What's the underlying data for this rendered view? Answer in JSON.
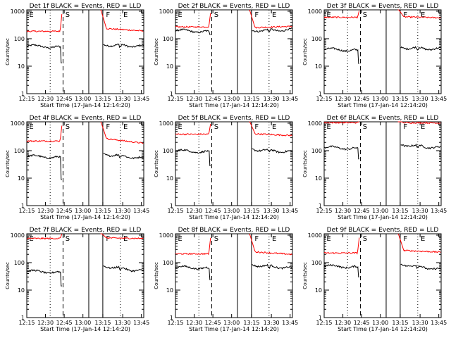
{
  "title_pattern": "Det {n}f BLACK = Events, RED = LLD",
  "xlabel": "Start Time (17-Jan-14 12:14:20)",
  "ylabel": "Counts/sec",
  "colors": {
    "events": "#000000",
    "lld": "#ff0000",
    "axes": "#000000"
  },
  "chart_data": [
    {
      "type": "line",
      "panel": "1",
      "title": "Det 1f BLACK = Events, RED = LLD",
      "xlabel": "Start Time (17-Jan-14 12:14:20)",
      "ylabel": "Counts/sec",
      "x_ticks": [
        "12:15",
        "12:30",
        "12:45",
        "13:00",
        "13:15",
        "13:30",
        "13:45"
      ],
      "y_ticks": [
        "1",
        "10",
        "100",
        "1000"
      ],
      "xlim": [
        0,
        100
      ],
      "ylim_log10": [
        0,
        3.05
      ],
      "scale": "log",
      "markers": [
        "E",
        "S",
        "F",
        "E"
      ],
      "series": [
        {
          "key": "events",
          "values_log10": {
            "pre": 1.72,
            "dip": 1.12,
            "post": 1.78,
            "end": 1.72
          }
        },
        {
          "key": "lld",
          "values_log10": {
            "pre": 2.27,
            "rise": 3.1,
            "post": 2.38,
            "end": 2.28
          }
        }
      ]
    },
    {
      "type": "line",
      "panel": "2",
      "title": "Det 2f BLACK = Events, RED = LLD",
      "xlabel": "Start Time (17-Jan-14 12:14:20)",
      "ylabel": "Counts/sec",
      "x_ticks": [
        "12:15",
        "12:30",
        "12:45",
        "13:00",
        "13:15",
        "13:30",
        "13:45"
      ],
      "y_ticks": [
        "1",
        "10",
        "100",
        "1000"
      ],
      "xlim": [
        0,
        100
      ],
      "ylim_log10": [
        0,
        3.05
      ],
      "scale": "log",
      "markers": [
        "E",
        "S",
        "F",
        "E"
      ],
      "series": [
        {
          "key": "events",
          "values_log10": {
            "pre": 2.28,
            "dip": 2.15,
            "post": 2.3,
            "end": 2.32
          }
        },
        {
          "key": "lld",
          "values_log10": {
            "pre": 2.43,
            "rise": 3.1,
            "post": 2.4,
            "end": 2.45
          }
        }
      ]
    },
    {
      "type": "line",
      "panel": "3",
      "title": "Det 3f BLACK = Events, RED = LLD",
      "xlabel": "Start Time (17-Jan-14 12:14:20)",
      "ylabel": "Counts/sec",
      "x_ticks": [
        "12:15",
        "12:30",
        "12:45",
        "13:00",
        "13:15",
        "13:30",
        "13:45"
      ],
      "y_ticks": [
        "1",
        "10",
        "100",
        "1000"
      ],
      "xlim": [
        0,
        100
      ],
      "ylim_log10": [
        0,
        3.05
      ],
      "scale": "log",
      "markers": [
        "E",
        "S",
        "F",
        "E"
      ],
      "series": [
        {
          "key": "events",
          "values_log10": {
            "pre": 1.6,
            "dip": 1.1,
            "post": 1.68,
            "end": 1.62
          }
        },
        {
          "key": "lld",
          "values_log10": {
            "pre": 2.78,
            "rise": 3.1,
            "post": 2.8,
            "end": 2.76
          }
        }
      ]
    },
    {
      "type": "line",
      "panel": "4",
      "title": "Det 4f BLACK = Events, RED = LLD",
      "xlabel": "Start Time (17-Jan-14 12:14:20)",
      "ylabel": "Counts/sec",
      "x_ticks": [
        "12:15",
        "12:30",
        "12:45",
        "13:00",
        "13:15",
        "13:30",
        "13:45"
      ],
      "y_ticks": [
        "1",
        "10",
        "100",
        "1000"
      ],
      "xlim": [
        0,
        100
      ],
      "ylim_log10": [
        0,
        3.05
      ],
      "scale": "log",
      "markers": [
        "E",
        "S",
        "F",
        "E"
      ],
      "series": [
        {
          "key": "events",
          "values_log10": {
            "pre": 1.78,
            "dip": 0.95,
            "post": 1.88,
            "end": 1.72
          }
        },
        {
          "key": "lld",
          "values_log10": {
            "pre": 2.35,
            "rise": 3.1,
            "post": 2.45,
            "end": 2.27
          }
        }
      ]
    },
    {
      "type": "line",
      "panel": "5",
      "title": "Det 5f BLACK = Events, RED = LLD",
      "xlabel": "Start Time (17-Jan-14 12:14:20)",
      "ylabel": "Counts/sec",
      "x_ticks": [
        "12:15",
        "12:30",
        "12:45",
        "13:00",
        "13:15",
        "13:30",
        "13:45"
      ],
      "y_ticks": [
        "1",
        "10",
        "100",
        "1000"
      ],
      "xlim": [
        0,
        100
      ],
      "ylim_log10": [
        0,
        3.05
      ],
      "scale": "log",
      "markers": [
        "E",
        "S",
        "F",
        "E"
      ],
      "series": [
        {
          "key": "events",
          "values_log10": {
            "pre": 1.98,
            "dip": 1.45,
            "post": 2.05,
            "end": 1.95
          }
        },
        {
          "key": "lld",
          "values_log10": {
            "pre": 2.6,
            "rise": 3.1,
            "post": 2.62,
            "end": 2.55
          }
        }
      ]
    },
    {
      "type": "line",
      "panel": "6",
      "title": "Det 6f BLACK = Events, RED = LLD",
      "xlabel": "Start Time (17-Jan-14 12:14:20)",
      "ylabel": "Counts/sec",
      "x_ticks": [
        "12:15",
        "12:30",
        "12:45",
        "13:00",
        "13:15",
        "13:30",
        "13:45"
      ],
      "y_ticks": [
        "1",
        "10",
        "100",
        "1000"
      ],
      "xlim": [
        0,
        100
      ],
      "ylim_log10": [
        0,
        3.05
      ],
      "scale": "log",
      "markers": [
        "E",
        "S",
        "F",
        "E"
      ],
      "series": [
        {
          "key": "events",
          "values_log10": {
            "pre": 2.1,
            "dip": 1.7,
            "post": 2.22,
            "end": 2.1
          }
        },
        {
          "key": "lld",
          "values_log10": {
            "pre": 3.02,
            "rise": 3.1,
            "post": 3.02,
            "end": 3.01
          }
        }
      ]
    },
    {
      "type": "line",
      "panel": "7",
      "title": "Det 7f BLACK = Events, RED = LLD",
      "xlabel": "Start Time (17-Jan-14 12:14:20)",
      "ylabel": "Counts/sec",
      "x_ticks": [
        "12:15",
        "12:30",
        "12:45",
        "13:00",
        "13:15",
        "13:30",
        "13:45"
      ],
      "y_ticks": [
        "1",
        "10",
        "100",
        "1000"
      ],
      "xlim": [
        0,
        100
      ],
      "ylim_log10": [
        0,
        3.05
      ],
      "scale": "log",
      "markers": [
        "E",
        "S",
        "F",
        "E"
      ],
      "series": [
        {
          "key": "events",
          "values_log10": {
            "pre": 1.67,
            "dip": 1.15,
            "post": 1.88,
            "end": 1.68
          }
        },
        {
          "key": "lld",
          "values_log10": {
            "pre": 2.88,
            "rise": 3.1,
            "post": 2.9,
            "end": 2.88
          }
        }
      ]
    },
    {
      "type": "line",
      "panel": "8",
      "title": "Det 8f BLACK = Events, RED = LLD",
      "xlabel": "Start Time (17-Jan-14 12:14:20)",
      "ylabel": "Counts/sec",
      "x_ticks": [
        "12:15",
        "12:30",
        "12:45",
        "13:00",
        "13:15",
        "13:30",
        "13:45"
      ],
      "y_ticks": [
        "1",
        "10",
        "100",
        "1000"
      ],
      "xlim": [
        0,
        100
      ],
      "ylim_log10": [
        0,
        3.05
      ],
      "scale": "log",
      "markers": [
        "E",
        "S",
        "F",
        "E"
      ],
      "series": [
        {
          "key": "events",
          "values_log10": {
            "pre": 1.82,
            "dip": 1.38,
            "post": 1.92,
            "end": 1.8
          }
        },
        {
          "key": "lld",
          "values_log10": {
            "pre": 2.32,
            "rise": 3.1,
            "post": 2.4,
            "end": 2.3
          }
        }
      ]
    },
    {
      "type": "line",
      "panel": "9",
      "title": "Det 9f BLACK = Events, RED = LLD",
      "xlabel": "Start Time (17-Jan-14 12:14:20)",
      "ylabel": "Counts/sec",
      "x_ticks": [
        "12:15",
        "12:30",
        "12:45",
        "13:00",
        "13:15",
        "13:30",
        "13:45"
      ],
      "y_ticks": [
        "1",
        "10",
        "100",
        "1000"
      ],
      "xlim": [
        0,
        100
      ],
      "ylim_log10": [
        0,
        3.05
      ],
      "scale": "log",
      "markers": [
        "E",
        "S",
        "F",
        "E"
      ],
      "series": [
        {
          "key": "events",
          "values_log10": {
            "pre": 1.86,
            "dip": 1.48,
            "post": 1.95,
            "end": 1.74
          }
        },
        {
          "key": "lld",
          "values_log10": {
            "pre": 2.35,
            "rise": 3.1,
            "post": 2.45,
            "end": 2.38
          }
        }
      ]
    }
  ]
}
